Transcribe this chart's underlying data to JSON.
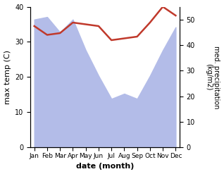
{
  "months": [
    "Jan",
    "Feb",
    "Mar",
    "Apr",
    "May",
    "Jun",
    "Jul",
    "Aug",
    "Sep",
    "Oct",
    "Nov",
    "Dec"
  ],
  "temp_line": [
    34.5,
    32.0,
    32.5,
    35.5,
    35.0,
    34.5,
    30.5,
    31.0,
    31.5,
    35.5,
    40.0,
    37.5
  ],
  "precip_kg": [
    50,
    51,
    45,
    50,
    38,
    28,
    19,
    21,
    19,
    28,
    38,
    47
  ],
  "temp_ylim": [
    0,
    40
  ],
  "precip_ylim": [
    0,
    55
  ],
  "temp_yticks": [
    0,
    10,
    20,
    30,
    40
  ],
  "precip_yticks": [
    0,
    10,
    20,
    30,
    40,
    50
  ],
  "area_color": "#b3bce8",
  "line_color": "#c0392b",
  "xlabel": "date (month)",
  "ylabel_left": "max temp (C)",
  "ylabel_right": "med. precipitation\n(kg/m2)"
}
